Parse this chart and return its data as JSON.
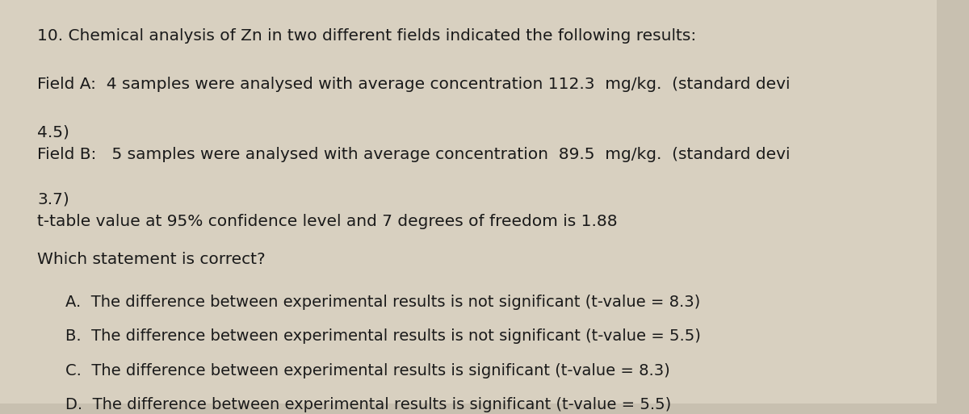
{
  "background_color": "#c8c0b0",
  "paper_color": "#d8d0c0",
  "text_color": "#1a1a1a",
  "question_number": "10.",
  "line1": "Chemical analysis of Zn in two different fields indicated the following results:",
  "line2a": "Field A:  4 samples were analysed with average concentration 112.3  mg/kg.  (standard devi",
  "line2b": "4.5)",
  "line3a": "Field B:   5 samples were analysed with average concentration  89.5  mg/kg.  (standard devi",
  "line3b": "3.7)",
  "line4": "t-table value at 95% confidence level and 7 degrees of freedom is 1.88",
  "line5": "Which statement is correct?",
  "options": [
    "A.  The difference between experimental results is not significant (t-value = 8.3)",
    "B.  The difference between experimental results is not significant (t-value = 5.5)",
    "C.  The difference between experimental results is significant (t-value = 8.3)",
    "D.  The difference between experimental results is significant (t-value = 5.5)"
  ],
  "font_size_question": 14.5,
  "font_size_options": 14.0
}
